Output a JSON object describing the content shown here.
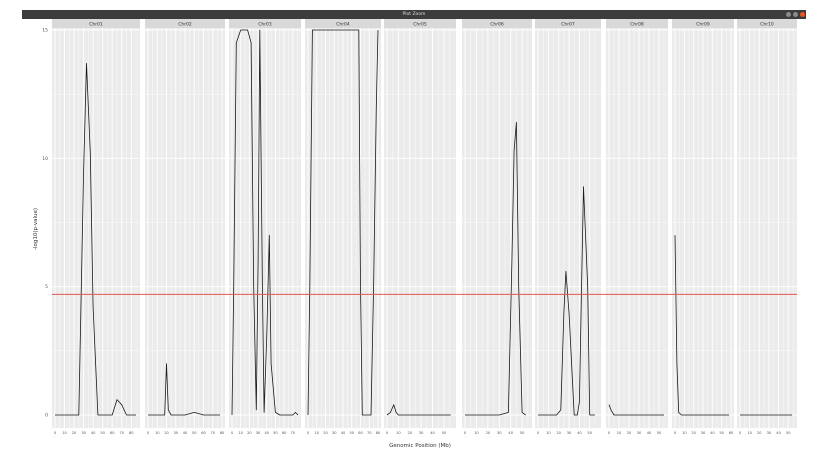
{
  "window": {
    "title": "Plot Zoom",
    "buttons": [
      "minimize-icon",
      "maximize-icon",
      "close-icon"
    ],
    "close_color": "#e95420"
  },
  "chart_data": {
    "type": "line",
    "xlabel": "Genomic Position (Mb)",
    "ylabel": "-log10(p-value)",
    "ylim": [
      0,
      15
    ],
    "yticks": [
      0,
      5,
      10,
      15
    ],
    "grid": true,
    "line_color": "#1a1a1a",
    "threshold": {
      "value": 4.7,
      "color": "#e05a4f"
    },
    "panels": [
      {
        "name": "Chr01",
        "xlim": [
          0,
          86
        ],
        "xticks": [
          0,
          10,
          20,
          30,
          40,
          50,
          60,
          70,
          80
        ],
        "x": [
          0,
          10,
          20,
          25,
          30,
          33,
          37,
          40,
          45,
          50,
          55,
          60,
          65,
          70,
          75,
          80,
          85
        ],
        "y": [
          0,
          0,
          0,
          0,
          9.5,
          13.7,
          10.2,
          4.2,
          0,
          0,
          0,
          0,
          0.6,
          0.4,
          0,
          0,
          0
        ]
      },
      {
        "name": "Chr02",
        "xlim": [
          0,
          80
        ],
        "xticks": [
          0,
          10,
          20,
          30,
          40,
          50,
          60,
          70,
          80
        ],
        "x": [
          0,
          10,
          18,
          20,
          22,
          25,
          30,
          40,
          50,
          60,
          70,
          78
        ],
        "y": [
          0,
          0,
          0,
          2.0,
          0.2,
          0,
          0,
          0,
          0.1,
          0,
          0,
          0
        ]
      },
      {
        "name": "Chr03",
        "xlim": [
          0,
          76
        ],
        "xticks": [
          0,
          10,
          20,
          30,
          40,
          50,
          60,
          70
        ],
        "x": [
          0,
          2,
          5,
          10,
          15,
          16,
          18,
          22,
          25,
          28,
          30,
          32,
          35,
          37,
          40,
          43,
          45,
          50,
          55,
          65,
          70,
          73,
          76
        ],
        "y": [
          0,
          5,
          14.5,
          15,
          15,
          15,
          15,
          14.5,
          5,
          0.2,
          6,
          15,
          5,
          0.1,
          3,
          7,
          2,
          0.1,
          0,
          0,
          0,
          0.1,
          0
        ]
      },
      {
        "name": "Chr04",
        "xlim": [
          0,
          80
        ],
        "xticks": [
          0,
          10,
          20,
          30,
          40,
          50,
          60,
          70,
          80
        ],
        "x": [
          0,
          2,
          5,
          8,
          10,
          20,
          30,
          40,
          50,
          55,
          58,
          60,
          62,
          65,
          70,
          72,
          75,
          78,
          80
        ],
        "y": [
          0,
          5,
          15,
          15,
          15,
          15,
          15,
          15,
          15,
          15,
          15,
          5,
          0,
          0,
          0,
          0,
          5,
          12,
          15
        ]
      },
      {
        "name": "Chr05",
        "xlim": [
          0,
          58
        ],
        "xticks": [
          0,
          10,
          20,
          30,
          40,
          50
        ],
        "x": [
          0,
          3,
          6,
          8,
          10,
          15,
          20,
          30,
          40,
          50,
          56
        ],
        "y": [
          0,
          0.1,
          0.4,
          0.1,
          0,
          0,
          0,
          0,
          0,
          0,
          0
        ]
      },
      {
        "name": "Chr06",
        "xlim": [
          0,
          56
        ],
        "xticks": [
          0,
          10,
          20,
          30,
          40,
          50
        ],
        "x": [
          0,
          10,
          20,
          30,
          38,
          41,
          43,
          45,
          47,
          50,
          53
        ],
        "y": [
          0,
          0,
          0,
          0,
          0.1,
          6,
          10.3,
          11.4,
          5,
          0.1,
          0
        ]
      },
      {
        "name": "Chr07",
        "xlim": [
          0,
          58
        ],
        "xticks": [
          0,
          10,
          20,
          30,
          40,
          50
        ],
        "x": [
          0,
          10,
          18,
          22,
          25,
          27,
          30,
          35,
          38,
          40,
          42,
          44,
          48,
          50,
          55
        ],
        "y": [
          0,
          0,
          0,
          0.2,
          4,
          5.6,
          4,
          0,
          0,
          0.5,
          4.7,
          8.9,
          5,
          0,
          0
        ]
      },
      {
        "name": "Chr08",
        "xlim": [
          0,
          56
        ],
        "xticks": [
          0,
          10,
          20,
          30,
          40,
          50
        ],
        "x": [
          0,
          2,
          5,
          10,
          20,
          30,
          40,
          50,
          55
        ],
        "y": [
          0.4,
          0.2,
          0,
          0,
          0,
          0,
          0,
          0,
          0
        ]
      },
      {
        "name": "Chr09",
        "xlim": [
          0,
          60
        ],
        "xticks": [
          0,
          10,
          20,
          30,
          40,
          50,
          60
        ],
        "x": [
          0,
          2,
          4,
          7,
          10,
          20,
          30,
          40,
          50,
          58
        ],
        "y": [
          7,
          2,
          0.1,
          0,
          0,
          0,
          0,
          0,
          0,
          0
        ]
      },
      {
        "name": "Chr10",
        "xlim": [
          0,
          56
        ],
        "xticks": [
          0,
          10,
          20,
          30,
          40,
          50
        ],
        "x": [
          0,
          10,
          20,
          30,
          40,
          50,
          54
        ],
        "y": [
          0,
          0,
          0,
          0,
          0,
          0,
          0
        ]
      }
    ]
  }
}
